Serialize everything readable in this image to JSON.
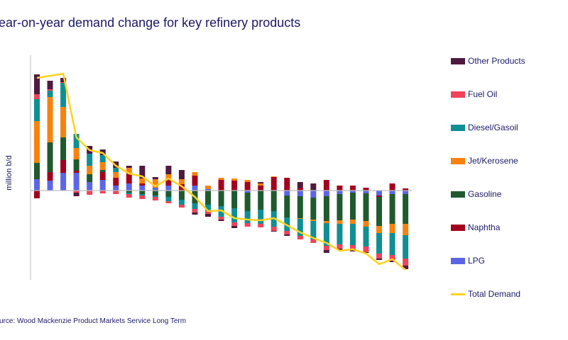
{
  "chart_data": {
    "type": "bar",
    "stacked": true,
    "title": "ear-on-year  demand change for key refinery products",
    "ylabel": "million b/d",
    "xlabel": "",
    "source": "urce: Wood Mackenzie Product Markets Service Long Term",
    "ylim": [
      -1.26,
      1.91
    ],
    "grid": false,
    "legend_position": "right",
    "series": [
      {
        "name": "LPG",
        "color": "#5b65e6",
        "values": [
          0.16,
          0.14,
          0.25,
          0.25,
          0.12,
          0.15,
          0.07,
          0.1,
          0.07,
          0.04,
          0.07,
          0,
          0.07,
          0.02,
          0,
          0,
          -0.03,
          0,
          0,
          -0.07,
          -0.08,
          -0.1,
          -0.08,
          -0.05,
          -0.03,
          -0.04,
          -0.07,
          -0.05,
          -0.05
        ]
      },
      {
        "name": "Naphtha",
        "color": "#a3001e",
        "values": [
          -0.11,
          0.12,
          0.18,
          0.03,
          0,
          0.11,
          0.11,
          0.14,
          0.03,
          0,
          0.09,
          0.09,
          0.14,
          0,
          0.15,
          0.14,
          0.12,
          0.07,
          0.19,
          0.18,
          0.04,
          0,
          0.15,
          0.07,
          0.07,
          0.04,
          -0.02,
          0.1,
          0.03
        ]
      },
      {
        "name": "Gasoline",
        "color": "#1f5a2e",
        "values": [
          0.23,
          0.42,
          0.32,
          0.16,
          0.11,
          0.03,
          0,
          -0.03,
          -0.05,
          -0.07,
          -0.09,
          -0.13,
          -0.18,
          -0.2,
          -0.22,
          -0.25,
          -0.26,
          -0.27,
          -0.29,
          -0.31,
          -0.31,
          -0.31,
          -0.35,
          -0.37,
          -0.38,
          -0.39,
          -0.41,
          -0.42,
          -0.42
        ]
      },
      {
        "name": "Jet/Kerosene",
        "color": "#f7820f",
        "values": [
          0.59,
          0.64,
          0.43,
          0.16,
          0.12,
          0.11,
          0.08,
          0.08,
          0.07,
          0.12,
          0.07,
          0.07,
          0.05,
          0.05,
          0.03,
          0.03,
          0.03,
          0.03,
          0.01,
          0,
          -0.01,
          -0.02,
          -0.03,
          -0.05,
          -0.06,
          -0.08,
          -0.1,
          -0.13,
          -0.16
        ]
      },
      {
        "name": "Diesel/Gasoil",
        "color": "#0e8f94",
        "values": [
          0.31,
          0.09,
          0.34,
          0.2,
          0.17,
          0.1,
          0.06,
          -0.02,
          -0.02,
          -0.02,
          -0.06,
          -0.07,
          -0.08,
          -0.09,
          -0.15,
          -0.2,
          -0.17,
          -0.2,
          -0.22,
          -0.19,
          -0.24,
          -0.26,
          -0.32,
          -0.29,
          -0.3,
          -0.28,
          -0.29,
          -0.31,
          -0.33
        ]
      },
      {
        "name": "Fuel Oil",
        "color": "#f0435a",
        "values": [
          0.07,
          0.02,
          0.01,
          -0.03,
          -0.06,
          -0.04,
          -0.05,
          -0.05,
          -0.05,
          -0.05,
          -0.03,
          -0.04,
          -0.05,
          -0.04,
          -0.04,
          -0.05,
          -0.05,
          -0.05,
          -0.06,
          -0.05,
          -0.05,
          -0.05,
          -0.06,
          -0.06,
          -0.07,
          -0.08,
          -0.07,
          -0.08,
          -0.1
        ]
      },
      {
        "name": "Other Products",
        "color": "#4e1a3f",
        "values": [
          0.28,
          0.12,
          0.06,
          -0.05,
          0.11,
          0.08,
          0.09,
          0.03,
          0.18,
          0.03,
          0.12,
          0.13,
          -0.03,
          -0.04,
          -0.02,
          -0.03,
          0,
          0.02,
          -0.01,
          -0.02,
          0.08,
          0.1,
          -0.04,
          -0.02,
          -0.02,
          -0.01,
          -0.02,
          -0.02,
          -0.05
        ]
      }
    ],
    "line": {
      "name": "Total Demand",
      "color": "#ffd21f",
      "values": [
        1.59,
        1.62,
        1.65,
        0.75,
        0.57,
        0.53,
        0.35,
        0.24,
        0.2,
        0.06,
        0.17,
        0.06,
        -0.09,
        -0.29,
        -0.28,
        -0.39,
        -0.41,
        -0.42,
        -0.39,
        -0.49,
        -0.59,
        -0.67,
        -0.74,
        -0.85,
        -0.83,
        -0.89,
        -1.04,
        -0.97,
        -1.12
      ]
    },
    "legend": [
      "Other Products",
      "Fuel Oil",
      "Diesel/Gasoil",
      "Jet/Kerosene",
      "Gasoline",
      "Naphtha",
      "LPG",
      "Total Demand"
    ]
  }
}
